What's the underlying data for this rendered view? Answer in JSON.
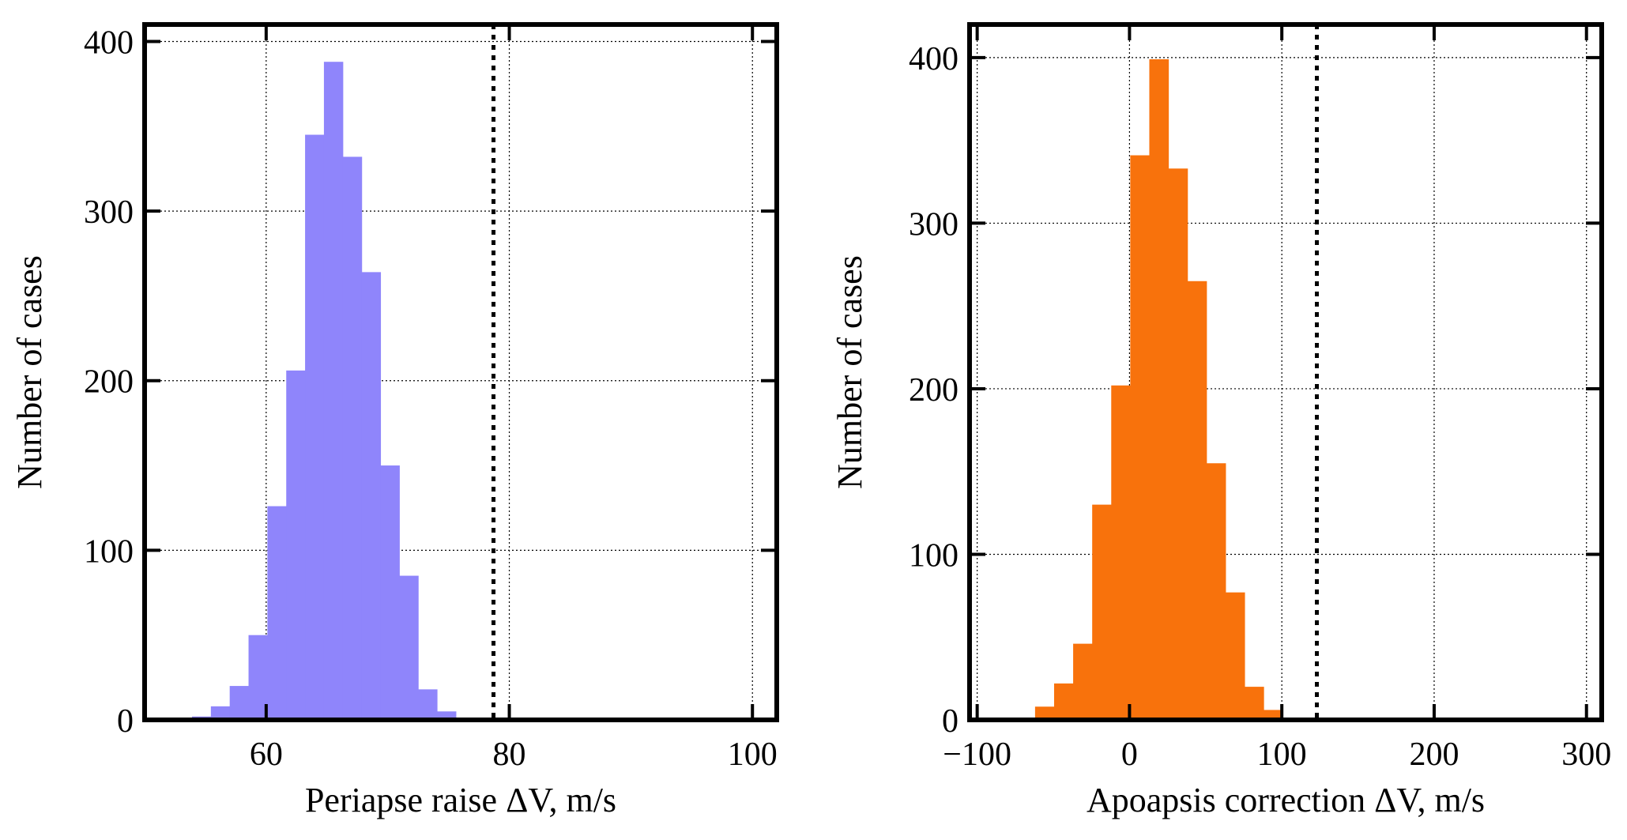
{
  "chart_data": [
    {
      "type": "bar",
      "subtype": "histogram",
      "xlabel": "Periapse raise ΔV, m/s",
      "ylabel": "Number of cases",
      "xlim": [
        50,
        102
      ],
      "ylim": [
        0,
        410
      ],
      "xticks": [
        60,
        80,
        100
      ],
      "yticks": [
        0,
        100,
        200,
        300,
        400
      ],
      "grid": true,
      "bar_color": "#8f85fb",
      "threshold_line": 78.7,
      "bin_width": 1.55,
      "bins": [
        {
          "x0": 53.9,
          "count": 2
        },
        {
          "x0": 55.45,
          "count": 8
        },
        {
          "x0": 57.0,
          "count": 20
        },
        {
          "x0": 58.55,
          "count": 50
        },
        {
          "x0": 60.1,
          "count": 126
        },
        {
          "x0": 61.65,
          "count": 206
        },
        {
          "x0": 63.2,
          "count": 345
        },
        {
          "x0": 64.75,
          "count": 388
        },
        {
          "x0": 66.3,
          "count": 332
        },
        {
          "x0": 67.85,
          "count": 264
        },
        {
          "x0": 69.4,
          "count": 150
        },
        {
          "x0": 70.95,
          "count": 85
        },
        {
          "x0": 72.5,
          "count": 18
        },
        {
          "x0": 74.05,
          "count": 5
        }
      ]
    },
    {
      "type": "bar",
      "subtype": "histogram",
      "xlabel": "Apoapsis correction ΔV, m/s",
      "ylabel": "Number of cases",
      "xlim": [
        -105,
        310
      ],
      "ylim": [
        0,
        420
      ],
      "xticks": [
        -100,
        0,
        100,
        200,
        300
      ],
      "xtick_labels": [
        "−100",
        "0",
        "100",
        "200",
        "300"
      ],
      "yticks": [
        0,
        100,
        200,
        300,
        400
      ],
      "grid": true,
      "bar_color": "#f8720c",
      "threshold_line": 123,
      "bin_width": 12.5,
      "bins": [
        {
          "x0": -62,
          "count": 8
        },
        {
          "x0": -49.5,
          "count": 22
        },
        {
          "x0": -37,
          "count": 46
        },
        {
          "x0": -24.5,
          "count": 130
        },
        {
          "x0": -12,
          "count": 202
        },
        {
          "x0": 0.5,
          "count": 341
        },
        {
          "x0": 13,
          "count": 399
        },
        {
          "x0": 25.5,
          "count": 333
        },
        {
          "x0": 38,
          "count": 265
        },
        {
          "x0": 50.5,
          "count": 155
        },
        {
          "x0": 63,
          "count": 77
        },
        {
          "x0": 75.5,
          "count": 20
        },
        {
          "x0": 88,
          "count": 6
        }
      ]
    }
  ]
}
